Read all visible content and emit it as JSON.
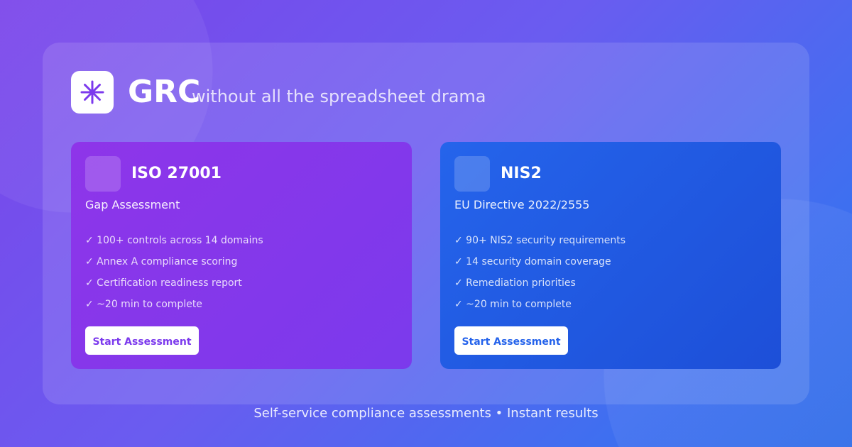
{
  "header": {
    "brand": "GRC",
    "tagline": "without all the spreadsheet drama",
    "logo_icon": "asterisk-icon"
  },
  "cards": [
    {
      "title": "ISO 27001",
      "subtitle": "Gap Assessment",
      "features": [
        "✓ 100+ controls across 14 domains",
        "✓ Annex A compliance scoring",
        "✓ Certification readiness report",
        "✓ ~20 min to complete"
      ],
      "button": "Start Assessment",
      "color": "#8b35e8"
    },
    {
      "title": "NIS2",
      "subtitle": "EU Directive 2022/2555",
      "features": [
        "✓ 90+ NIS2 security requirements",
        "✓ 14 security domain coverage",
        "✓ Remediation priorities",
        "✓ ~20 min to complete"
      ],
      "button": "Start Assessment",
      "color": "#2563eb"
    }
  ],
  "footer": "Self-service compliance assessments • Instant results"
}
